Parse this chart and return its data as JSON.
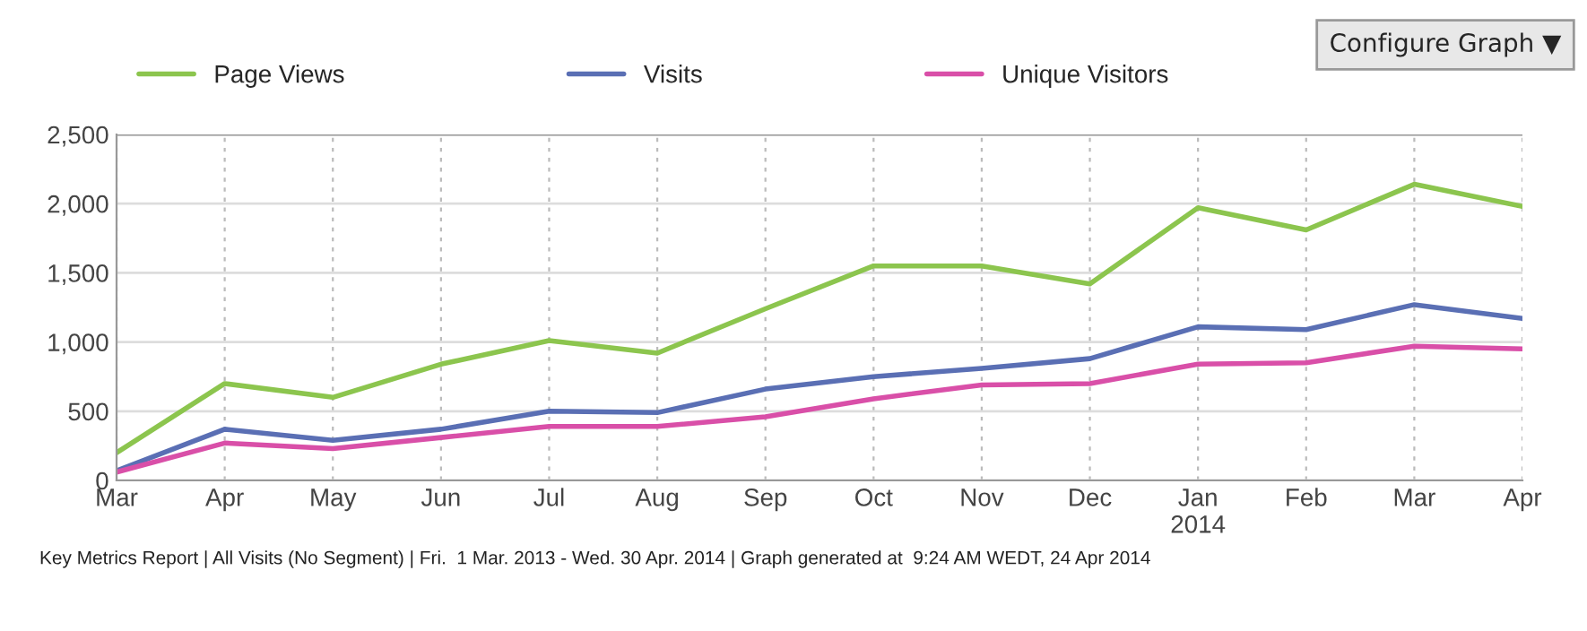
{
  "chart_data": {
    "type": "line",
    "categories": [
      "Mar",
      "Apr",
      "May",
      "Jun",
      "Jul",
      "Aug",
      "Sep",
      "Oct",
      "Nov",
      "Dec",
      "Jan\n2014",
      "Feb",
      "Mar",
      "Apr"
    ],
    "series": [
      {
        "name": "Page Views",
        "color": "#8cc54e",
        "values": [
          200,
          700,
          600,
          840,
          1010,
          920,
          1240,
          1550,
          1550,
          1420,
          1970,
          1810,
          2140,
          1980
        ]
      },
      {
        "name": "Visits",
        "color": "#5a6fb4",
        "values": [
          70,
          370,
          290,
          370,
          500,
          490,
          660,
          750,
          810,
          880,
          1110,
          1090,
          1270,
          1170
        ]
      },
      {
        "name": "Unique Visitors",
        "color": "#d94fa8",
        "values": [
          60,
          270,
          230,
          310,
          390,
          390,
          460,
          590,
          690,
          700,
          840,
          850,
          970,
          950
        ]
      }
    ],
    "ylim": [
      0,
      2500
    ],
    "yticks": [
      0,
      {
        "value": 500,
        "label": "500"
      },
      {
        "value": 1000,
        "label": "1,000"
      },
      {
        "value": 1500,
        "label": "1,500"
      },
      {
        "value": 2000,
        "label": "2,000"
      },
      {
        "value": 2500,
        "label": "2,500"
      }
    ],
    "grid": true,
    "legend": "top left",
    "marker": "none",
    "line_style": "solid",
    "annotations": [
      "Configure Graph ▼",
      "Key Metrics Report | All Visits (No Segment) | Fri.  1 Mar. 2013 - Wed. 30 Apr. 2014 | Graph generated at  9:24 AM WEDT, 24 Apr 2014"
    ]
  }
}
